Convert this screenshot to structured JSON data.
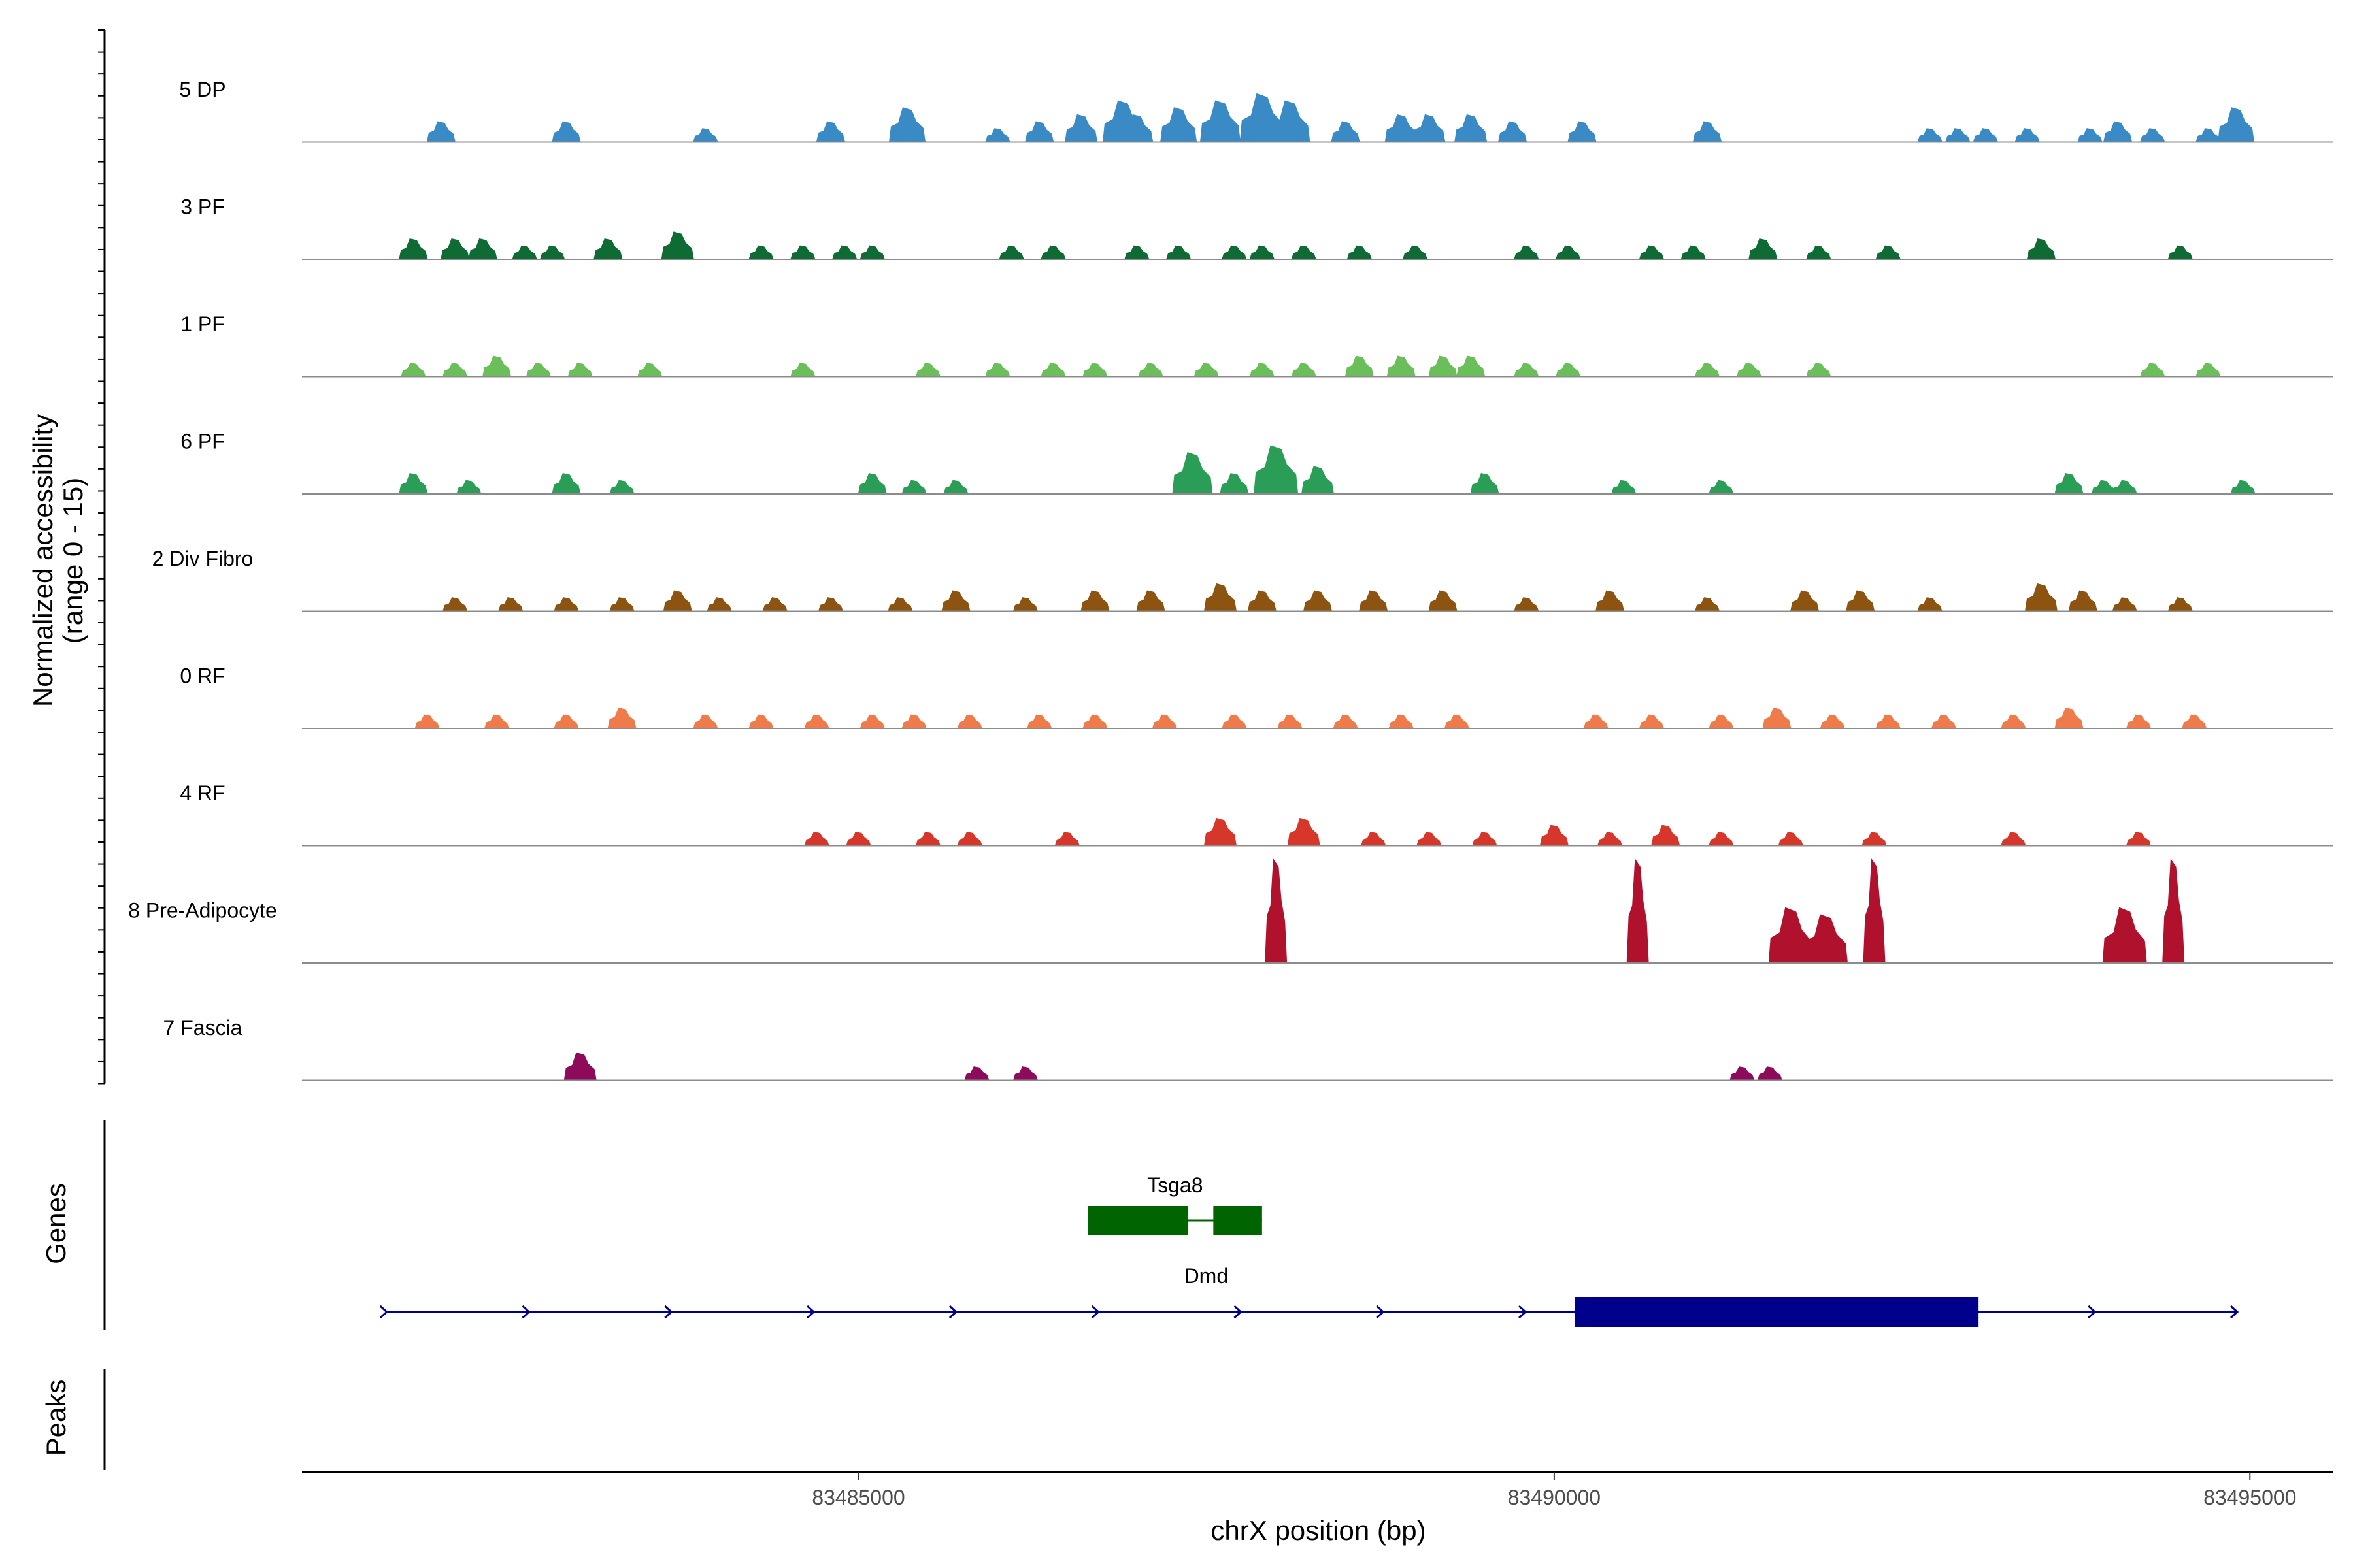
{
  "chart_data": {
    "type": "area",
    "title": "",
    "chromosome": "chrX",
    "xlabel": "chrX position (bp)",
    "xlim": [
      83481000,
      83495600
    ],
    "xticks": [
      83485000,
      83490000,
      83495000
    ],
    "xtick_labels": [
      "83485000",
      "83490000",
      "83495000"
    ],
    "coverage_panel": {
      "ylabel": "Normalized accessibility",
      "ylabel_range": "(range 0 - 15)",
      "ylim": [
        0,
        15
      ]
    },
    "tracks": [
      {
        "name": "5 DP",
        "color": "#3a8ac5",
        "peaks": [
          [
            83482000,
            3
          ],
          [
            83482900,
            3
          ],
          [
            83483900,
            2
          ],
          [
            83484800,
            3
          ],
          [
            83485350,
            5
          ],
          [
            83486000,
            2
          ],
          [
            83486300,
            3
          ],
          [
            83486600,
            4
          ],
          [
            83486900,
            6
          ],
          [
            83487000,
            4
          ],
          [
            83487300,
            5
          ],
          [
            83487600,
            6
          ],
          [
            83487900,
            7
          ],
          [
            83488100,
            6
          ],
          [
            83488500,
            3
          ],
          [
            83488900,
            4
          ],
          [
            83489100,
            4
          ],
          [
            83489400,
            4
          ],
          [
            83489700,
            3
          ],
          [
            83490200,
            3
          ],
          [
            83491100,
            3
          ],
          [
            83492700,
            2
          ],
          [
            83492900,
            2
          ],
          [
            83493100,
            2
          ],
          [
            83493400,
            2
          ],
          [
            83493850,
            2
          ],
          [
            83494050,
            3
          ],
          [
            83494300,
            2
          ],
          [
            83494700,
            2
          ],
          [
            83494900,
            5
          ]
        ]
      },
      {
        "name": "3 PF",
        "color": "#0e6b34",
        "peaks": [
          [
            83481800,
            3
          ],
          [
            83482100,
            3
          ],
          [
            83482300,
            3
          ],
          [
            83482600,
            2
          ],
          [
            83482800,
            2
          ],
          [
            83483200,
            3
          ],
          [
            83483700,
            4
          ],
          [
            83484300,
            2
          ],
          [
            83484600,
            2
          ],
          [
            83484900,
            2
          ],
          [
            83485100,
            2
          ],
          [
            83486100,
            2
          ],
          [
            83486400,
            2
          ],
          [
            83487000,
            2
          ],
          [
            83487300,
            2
          ],
          [
            83487700,
            2
          ],
          [
            83487900,
            2
          ],
          [
            83488200,
            2
          ],
          [
            83488600,
            2
          ],
          [
            83489000,
            2
          ],
          [
            83489800,
            2
          ],
          [
            83490100,
            2
          ],
          [
            83490700,
            2
          ],
          [
            83491000,
            2
          ],
          [
            83491500,
            3
          ],
          [
            83491900,
            2
          ],
          [
            83492400,
            2
          ],
          [
            83493500,
            3
          ],
          [
            83494500,
            2
          ]
        ]
      },
      {
        "name": "1 PF",
        "color": "#6bbf5a",
        "peaks": [
          [
            83481800,
            2
          ],
          [
            83482100,
            2
          ],
          [
            83482400,
            3
          ],
          [
            83482700,
            2
          ],
          [
            83483000,
            2
          ],
          [
            83483500,
            2
          ],
          [
            83484600,
            2
          ],
          [
            83485500,
            2
          ],
          [
            83486000,
            2
          ],
          [
            83486400,
            2
          ],
          [
            83486700,
            2
          ],
          [
            83487100,
            2
          ],
          [
            83487500,
            2
          ],
          [
            83487900,
            2
          ],
          [
            83488200,
            2
          ],
          [
            83488600,
            3
          ],
          [
            83488900,
            3
          ],
          [
            83489200,
            3
          ],
          [
            83489400,
            3
          ],
          [
            83489800,
            2
          ],
          [
            83490100,
            2
          ],
          [
            83491100,
            2
          ],
          [
            83491400,
            2
          ],
          [
            83491900,
            2
          ],
          [
            83494300,
            2
          ],
          [
            83494700,
            2
          ]
        ]
      },
      {
        "name": "6 PF",
        "color": "#2a9d57",
        "peaks": [
          [
            83481800,
            3
          ],
          [
            83482200,
            2
          ],
          [
            83482900,
            3
          ],
          [
            83483300,
            2
          ],
          [
            83485100,
            3
          ],
          [
            83485400,
            2
          ],
          [
            83485700,
            2
          ],
          [
            83487400,
            6
          ],
          [
            83487700,
            3
          ],
          [
            83488000,
            7
          ],
          [
            83488300,
            4
          ],
          [
            83489500,
            3
          ],
          [
            83490500,
            2
          ],
          [
            83491200,
            2
          ],
          [
            83493700,
            3
          ],
          [
            83493950,
            2
          ],
          [
            83494100,
            2
          ],
          [
            83494950,
            2
          ]
        ]
      },
      {
        "name": "2 Div Fibro",
        "color": "#8c5410",
        "peaks": [
          [
            83482100,
            2
          ],
          [
            83482500,
            2
          ],
          [
            83482900,
            2
          ],
          [
            83483300,
            2
          ],
          [
            83483700,
            3
          ],
          [
            83484000,
            2
          ],
          [
            83484400,
            2
          ],
          [
            83484800,
            2
          ],
          [
            83485300,
            2
          ],
          [
            83485700,
            3
          ],
          [
            83486200,
            2
          ],
          [
            83486700,
            3
          ],
          [
            83487100,
            3
          ],
          [
            83487600,
            4
          ],
          [
            83487900,
            3
          ],
          [
            83488300,
            3
          ],
          [
            83488700,
            3
          ],
          [
            83489200,
            3
          ],
          [
            83489800,
            2
          ],
          [
            83490400,
            3
          ],
          [
            83491100,
            2
          ],
          [
            83491800,
            3
          ],
          [
            83492200,
            3
          ],
          [
            83492700,
            2
          ],
          [
            83493500,
            4
          ],
          [
            83493800,
            3
          ],
          [
            83494100,
            2
          ],
          [
            83494500,
            2
          ]
        ]
      },
      {
        "name": "0 RF",
        "color": "#ef7a4a",
        "peaks": [
          [
            83481900,
            2
          ],
          [
            83482400,
            2
          ],
          [
            83482900,
            2
          ],
          [
            83483300,
            3
          ],
          [
            83483900,
            2
          ],
          [
            83484300,
            2
          ],
          [
            83484700,
            2
          ],
          [
            83485100,
            2
          ],
          [
            83485400,
            2
          ],
          [
            83485800,
            2
          ],
          [
            83486300,
            2
          ],
          [
            83486700,
            2
          ],
          [
            83487200,
            2
          ],
          [
            83487700,
            2
          ],
          [
            83488100,
            2
          ],
          [
            83488500,
            2
          ],
          [
            83488900,
            2
          ],
          [
            83489300,
            2
          ],
          [
            83490300,
            2
          ],
          [
            83490700,
            2
          ],
          [
            83491200,
            2
          ],
          [
            83491600,
            3
          ],
          [
            83492000,
            2
          ],
          [
            83492400,
            2
          ],
          [
            83492800,
            2
          ],
          [
            83493300,
            2
          ],
          [
            83493700,
            3
          ],
          [
            83494200,
            2
          ],
          [
            83494600,
            2
          ]
        ]
      },
      {
        "name": "4 RF",
        "color": "#d7372a",
        "peaks": [
          [
            83484700,
            2
          ],
          [
            83485000,
            2
          ],
          [
            83485500,
            2
          ],
          [
            83485800,
            2
          ],
          [
            83486500,
            2
          ],
          [
            83487600,
            4
          ],
          [
            83488200,
            4
          ],
          [
            83488700,
            2
          ],
          [
            83489100,
            2
          ],
          [
            83489500,
            2
          ],
          [
            83490000,
            3
          ],
          [
            83490400,
            2
          ],
          [
            83490800,
            3
          ],
          [
            83491200,
            2
          ],
          [
            83491700,
            2
          ],
          [
            83492300,
            2
          ],
          [
            83493300,
            2
          ],
          [
            83494200,
            2
          ]
        ]
      },
      {
        "name": "8 Pre-Adipocyte",
        "color": "#b0122d",
        "peaks": [
          [
            83488000,
            15
          ],
          [
            83490600,
            15
          ],
          [
            83491700,
            8
          ],
          [
            83491950,
            7
          ],
          [
            83492300,
            15
          ],
          [
            83494100,
            8
          ],
          [
            83494450,
            15
          ]
        ]
      },
      {
        "name": "7 Fascia",
        "color": "#8e0b5c",
        "peaks": [
          [
            83483000,
            4
          ],
          [
            83485850,
            2
          ],
          [
            83486200,
            2
          ],
          [
            83491350,
            2
          ],
          [
            83491550,
            2
          ]
        ]
      }
    ],
    "genes_panel": {
      "ylabel": "Genes",
      "genes": [
        {
          "name": "Tsga8",
          "color": "#006400",
          "start": 83486650,
          "end": 83487900,
          "exons": [
            [
              83486650,
              83487370
            ],
            [
              83487550,
              83487900
            ]
          ]
        },
        {
          "name": "Dmd",
          "color": "#00008b",
          "start": 83481600,
          "end": 83494900,
          "exons": [
            [
              83490150,
              83493050
            ]
          ],
          "strand": "+"
        }
      ]
    },
    "peaks_panel": {
      "ylabel": "Peaks",
      "peaks": []
    }
  }
}
